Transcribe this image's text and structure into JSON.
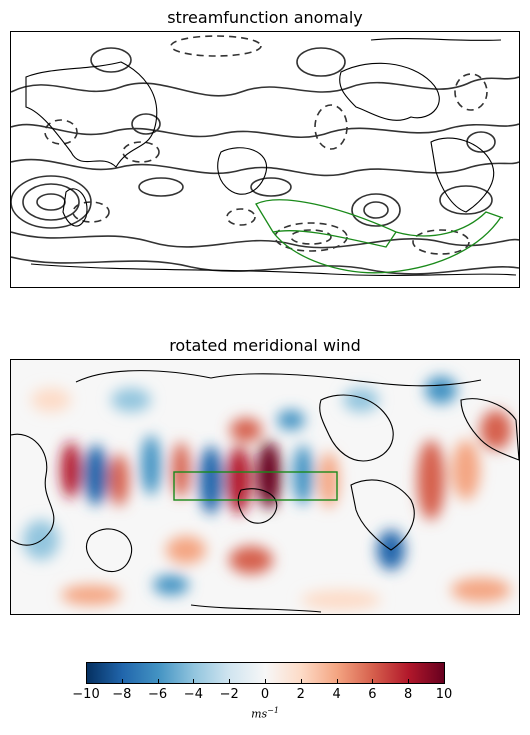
{
  "figure": {
    "panels": [
      {
        "title": "streamfunction anomaly"
      },
      {
        "title": "rotated meridional wind"
      }
    ]
  },
  "colorbar": {
    "ticks": [
      "−10",
      "−8",
      "−6",
      "−4",
      "−2",
      "0",
      "2",
      "4",
      "6",
      "8",
      "10"
    ],
    "range": [
      -10,
      10
    ],
    "units_base": "ms",
    "units_exp": "−1",
    "colormap": [
      "#053061",
      "#2166ac",
      "#4393c3",
      "#92c5de",
      "#d1e5f0",
      "#f7f7f7",
      "#fddbc7",
      "#f4a582",
      "#d6604d",
      "#b2182b",
      "#67001f"
    ]
  },
  "colors": {
    "contour": "#333333",
    "box": "#1a8a1a",
    "coast": "#000000"
  }
}
